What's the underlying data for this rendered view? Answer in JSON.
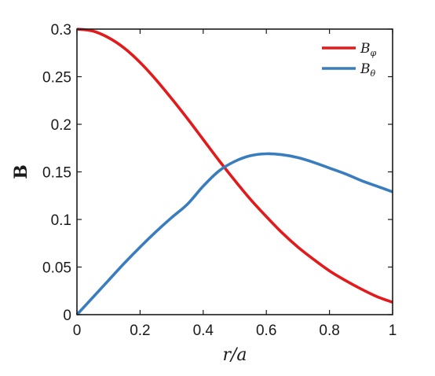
{
  "chart_data": {
    "type": "line",
    "xlabel": "r/a",
    "ylabel": "B",
    "xlim": [
      0,
      1
    ],
    "ylim": [
      0,
      0.3
    ],
    "xticks": [
      0,
      0.2,
      0.4,
      0.6,
      0.8,
      1
    ],
    "xtick_labels": [
      "0",
      "0.2",
      "0.4",
      "0.6",
      "0.8",
      "1"
    ],
    "yticks": [
      0,
      0.05,
      0.1,
      0.15,
      0.2,
      0.25,
      0.3
    ],
    "ytick_labels": [
      "0",
      "0.05",
      "0.1",
      "0.15",
      "0.2",
      "0.25",
      "0.3"
    ],
    "grid": false,
    "legend_position": "top-right",
    "series": [
      {
        "name": "B",
        "subscript": "φ",
        "color": "#e31a1c",
        "x": [
          0,
          0.05,
          0.1,
          0.15,
          0.2,
          0.25,
          0.3,
          0.35,
          0.4,
          0.45,
          0.5,
          0.55,
          0.6,
          0.65,
          0.7,
          0.75,
          0.8,
          0.85,
          0.9,
          0.95,
          1
        ],
        "y": [
          0.3,
          0.298,
          0.291,
          0.28,
          0.265,
          0.247,
          0.227,
          0.206,
          0.184,
          0.162,
          0.141,
          0.121,
          0.103,
          0.086,
          0.071,
          0.058,
          0.046,
          0.036,
          0.027,
          0.019,
          0.013
        ]
      },
      {
        "name": "B",
        "subscript": "θ",
        "color": "#3a7dbf",
        "x": [
          0,
          0.05,
          0.1,
          0.15,
          0.2,
          0.25,
          0.3,
          0.35,
          0.4,
          0.45,
          0.5,
          0.55,
          0.6,
          0.65,
          0.7,
          0.75,
          0.8,
          0.85,
          0.9,
          0.95,
          1
        ],
        "y": [
          0,
          0.018,
          0.036,
          0.054,
          0.071,
          0.087,
          0.102,
          0.116,
          0.135,
          0.151,
          0.161,
          0.167,
          0.169,
          0.168,
          0.165,
          0.16,
          0.154,
          0.148,
          0.141,
          0.135,
          0.129
        ]
      }
    ]
  }
}
